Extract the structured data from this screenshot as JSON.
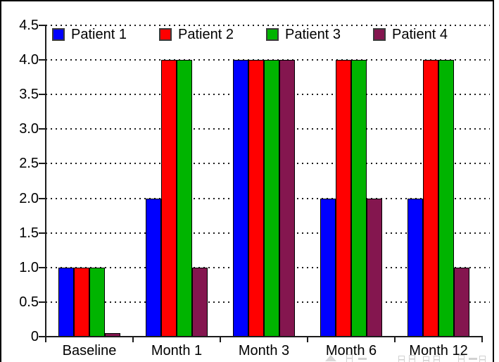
{
  "chart_data": {
    "type": "bar",
    "title": "",
    "xlabel": "",
    "ylabel": "",
    "categories": [
      "Baseline",
      "Month 1",
      "Month 3",
      "Month 6",
      "Month 12"
    ],
    "series": [
      {
        "name": "Patient 1",
        "color": "#0000FF",
        "values": [
          1,
          2,
          4,
          2,
          2
        ]
      },
      {
        "name": "Patient 2",
        "color": "#FF0000",
        "values": [
          1,
          4,
          4,
          4,
          4
        ]
      },
      {
        "name": "Patient 3",
        "color": "#00B400",
        "values": [
          1,
          4,
          4,
          4,
          4
        ]
      },
      {
        "name": "Patient 4",
        "color": "#84164F",
        "values": [
          0.05,
          1,
          4,
          2,
          1
        ]
      }
    ],
    "ylim": [
      0,
      4.5
    ],
    "ytick_step": 0.5,
    "ytick_labels": [
      "0",
      "0.5",
      "1.0",
      "1.5",
      "2.0",
      "2.5",
      "3.0",
      "3.5",
      "4.0",
      "4.5"
    ],
    "grid": "horizontal-dotted",
    "legend_position": "top-inside",
    "bar_border_color": "#000000",
    "axis_color": "#1c1c1c",
    "background_color": "#FFFFFF"
  }
}
